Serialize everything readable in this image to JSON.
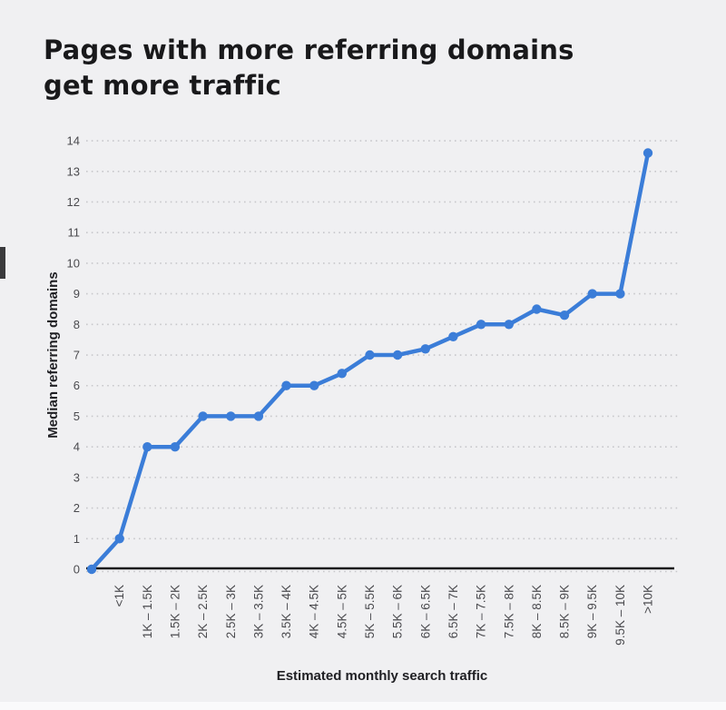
{
  "header": {
    "title_line1": "Pages with more referring domains",
    "title_line2": "get more traffic"
  },
  "colors": {
    "background": "#f0f0f2",
    "line": "#3b7dd8",
    "axis": "#19191b",
    "grid_dots": "#c7c7cb",
    "tick_text": "#4a4a4e",
    "axis_title_text": "#202024",
    "title_text": "#19191b",
    "left_tab": "#3a3a3c",
    "bottom_edge": "#fafafb"
  },
  "chart_data": {
    "type": "line",
    "title": "Pages with more referring domains get more traffic",
    "xlabel": "Estimated monthly search traffic",
    "ylabel": "Median referring domains",
    "ylim": [
      0,
      14
    ],
    "ytick_step": 1,
    "grid": "horizontal-dotted",
    "legend": "none",
    "marker": "circle",
    "categories": [
      "",
      "<1K",
      "1K – 1.5K",
      "1.5K – 2K",
      "2K – 2.5K",
      "2.5K – 3K",
      "3K – 3.5K",
      "3.5K – 4K",
      "4K – 4.5K",
      "4.5K – 5K",
      "5K – 5.5K",
      "5.5K – 6K",
      "6K – 6.5K",
      "6.5K – 7K",
      "7K – 7.5K",
      "7.5K – 8K",
      "8K – 8.5K",
      "8.5K – 9K",
      "9K – 9.5K",
      "9.5K – 10K",
      ">10K"
    ],
    "values": [
      0,
      1,
      4,
      4,
      5,
      5,
      5,
      6,
      6,
      6.4,
      7,
      7,
      7.2,
      7.6,
      8,
      8,
      8.5,
      8.3,
      9,
      9,
      13.6
    ]
  }
}
